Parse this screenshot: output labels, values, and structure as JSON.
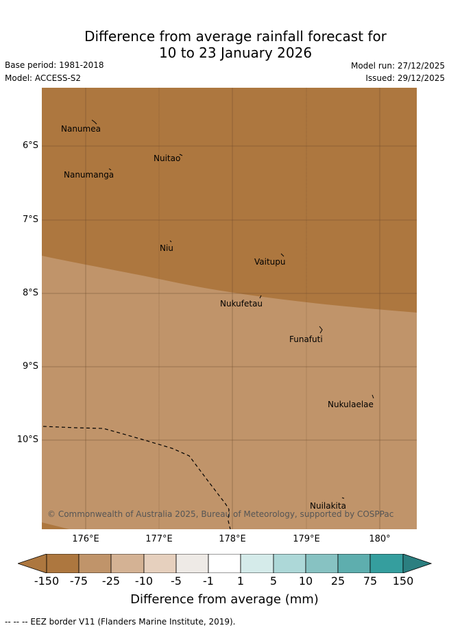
{
  "title": {
    "line1": "Difference from average rainfall forecast for",
    "line2": "10 to 23 January 2026"
  },
  "meta": {
    "base_period": "Base period: 1981-2018",
    "model": "Model: ACCESS-S2",
    "model_run": "Model run: 27/12/2025",
    "issued": "Issued: 29/12/2025"
  },
  "map": {
    "colors": {
      "dark_brown": "#ad773f",
      "light_brown": "#c0946a",
      "grid": "#6b4a2a"
    },
    "lat_labels": [
      "6°S",
      "7°S",
      "8°S",
      "9°S",
      "10°S"
    ],
    "lon_labels": [
      "176°E",
      "177°E",
      "178°E",
      "179°E",
      "180°"
    ],
    "islands": [
      "Nanumea",
      "Nuitao",
      "Nanumanga",
      "Niu",
      "Vaitupu",
      "Nukufetau",
      "Funafuti",
      "Nukulaelae",
      "Nuilakita"
    ],
    "copyright": "© Commonwealth of Australia 2025, Bureau of Meteorology, supported by COSPPac"
  },
  "colorbar": {
    "ticks": [
      "-150",
      "-75",
      "-25",
      "-10",
      "-5",
      "-1",
      "1",
      "5",
      "10",
      "25",
      "75",
      "150"
    ],
    "colors": [
      "#ad773f",
      "#ad773f",
      "#c0946a",
      "#d4b294",
      "#e6d0be",
      "#eeeae6",
      "#ffffff",
      "#d5ebea",
      "#add8d8",
      "#87c2c2",
      "#5eaeae",
      "#359e9e",
      "#2b7f80"
    ],
    "title": "Difference from average (mm)"
  },
  "legend": {
    "eez": "--  --  -- EEZ border V11 (Flanders Marine Institute, 2019)."
  }
}
